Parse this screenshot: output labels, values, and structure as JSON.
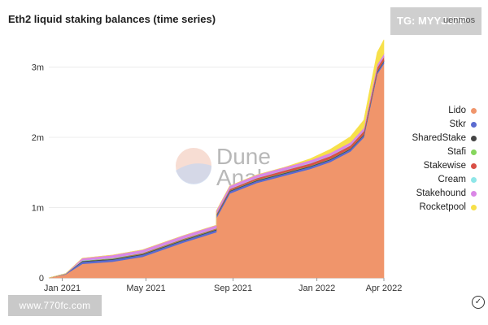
{
  "watermarks": {
    "banner_text": "TG: MYYJJPP",
    "banner_suffix": "uenmos",
    "site_text": "www.770fc.com",
    "dune_line1": "Dune",
    "dune_line2": "Analytics"
  },
  "chart_data": {
    "type": "area",
    "stacked": true,
    "title": "Eth2 liquid staking balances (time series)",
    "xlabel": "",
    "ylabel": "",
    "x_ticks": [
      "Jan 2021",
      "May 2021",
      "Sep 2021",
      "Jan 2022",
      "Apr 2022"
    ],
    "y_ticks": [
      "0",
      "1m",
      "2m",
      "3m"
    ],
    "y_tick_values": [
      0,
      1000000,
      2000000,
      3000000
    ],
    "ylim": [
      0,
      3400000
    ],
    "grid": true,
    "legend_position": "right",
    "x": [
      "Jan 2021",
      "Feb 2021",
      "Mar 2021",
      "Apr 2021",
      "May 2021",
      "Jun 2021",
      "Jul 2021",
      "Aug 2021",
      "Sep 2021",
      "Oct 2021",
      "Nov 2021",
      "Dec 2021",
      "Jan 2022",
      "Feb 2022",
      "Mar 2022",
      "Mid Mar 2022",
      "Late Mar 2022",
      "Apr 2022"
    ],
    "series": [
      {
        "name": "Lido",
        "color": "#f0956b",
        "values": [
          0,
          50000,
          200000,
          230000,
          300000,
          500000,
          650000,
          850000,
          1200000,
          1350000,
          1450000,
          1550000,
          1650000,
          1800000,
          2000000,
          2450000,
          2900000,
          3050000
        ]
      },
      {
        "name": "Stkr",
        "color": "#5b6bd0",
        "values": [
          0,
          10000,
          30000,
          30000,
          30000,
          30000,
          30000,
          30000,
          30000,
          30000,
          30000,
          30000,
          30000,
          30000,
          30000,
          30000,
          30000,
          30000
        ]
      },
      {
        "name": "SharedStake",
        "color": "#444444",
        "values": [
          0,
          0,
          10000,
          10000,
          10000,
          10000,
          10000,
          10000,
          10000,
          10000,
          10000,
          10000,
          10000,
          10000,
          10000,
          10000,
          10000,
          10000
        ]
      },
      {
        "name": "Stafi",
        "color": "#86d65d",
        "values": [
          0,
          0,
          5000,
          5000,
          5000,
          5000,
          5000,
          5000,
          5000,
          5000,
          5000,
          5000,
          5000,
          5000,
          5000,
          5000,
          5000,
          5000
        ]
      },
      {
        "name": "Stakewise",
        "color": "#d94f45",
        "values": [
          0,
          0,
          0,
          5000,
          10000,
          10000,
          10000,
          15000,
          20000,
          25000,
          30000,
          35000,
          40000,
          40000,
          45000,
          50000,
          50000,
          50000
        ]
      },
      {
        "name": "Cream",
        "color": "#8ee6e8",
        "values": [
          0,
          0,
          5000,
          5000,
          5000,
          5000,
          5000,
          5000,
          5000,
          5000,
          5000,
          5000,
          5000,
          5000,
          5000,
          5000,
          5000,
          5000
        ]
      },
      {
        "name": "Stakehound",
        "color": "#da86e6",
        "values": [
          0,
          0,
          30000,
          40000,
          40000,
          40000,
          40000,
          40000,
          40000,
          40000,
          40000,
          40000,
          40000,
          40000,
          40000,
          40000,
          40000,
          40000
        ]
      },
      {
        "name": "Rocketpool",
        "color": "#f7e04a",
        "values": [
          0,
          0,
          0,
          0,
          0,
          0,
          0,
          0,
          0,
          0,
          0,
          20000,
          50000,
          80000,
          110000,
          140000,
          170000,
          200000
        ]
      }
    ]
  }
}
